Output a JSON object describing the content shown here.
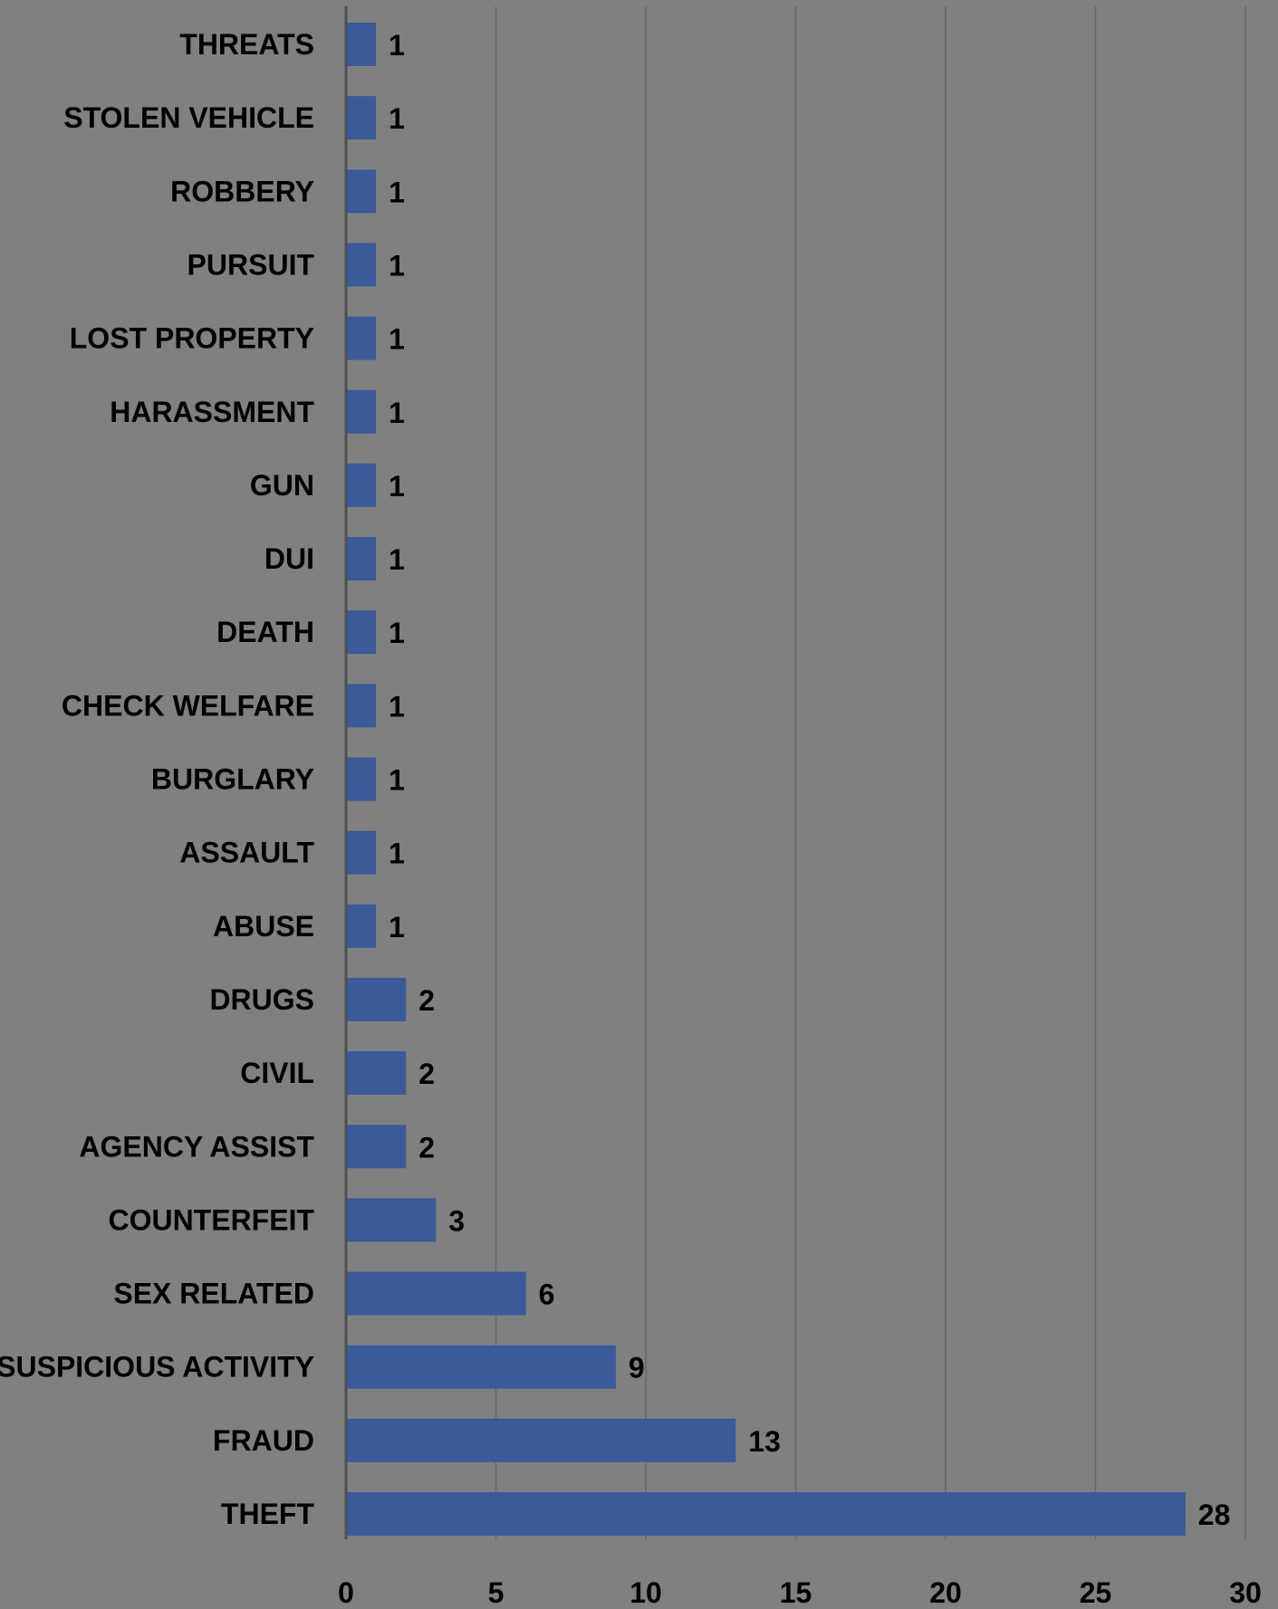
{
  "chart_data": {
    "type": "bar",
    "orientation": "horizontal",
    "title": "",
    "xlabel": "",
    "ylabel": "",
    "categories": [
      "THREATS",
      "STOLEN VEHICLE",
      "ROBBERY",
      "PURSUIT",
      "LOST PROPERTY",
      "HARASSMENT",
      "GUN",
      "DUI",
      "DEATH",
      "CHECK WELFARE",
      "BURGLARY",
      "ASSAULT",
      "ABUSE",
      "DRUGS",
      "CIVIL",
      "AGENCY ASSIST",
      "COUNTERFEIT",
      "SEX RELATED",
      "SUSPICIOUS ACTIVITY",
      "FRAUD",
      "THEFT"
    ],
    "values": [
      1,
      1,
      1,
      1,
      1,
      1,
      1,
      1,
      1,
      1,
      1,
      1,
      1,
      2,
      2,
      2,
      3,
      6,
      9,
      13,
      28
    ],
    "xlim": [
      0,
      30
    ],
    "xticks": [
      0,
      5,
      10,
      15,
      20,
      25,
      30
    ],
    "grid": true,
    "legend": "none",
    "data_labels": true,
    "colors": {
      "background": "#808080",
      "bar": "#3A5A99",
      "gridline": "#666666",
      "axis": "#505050",
      "text": "#000000"
    }
  }
}
